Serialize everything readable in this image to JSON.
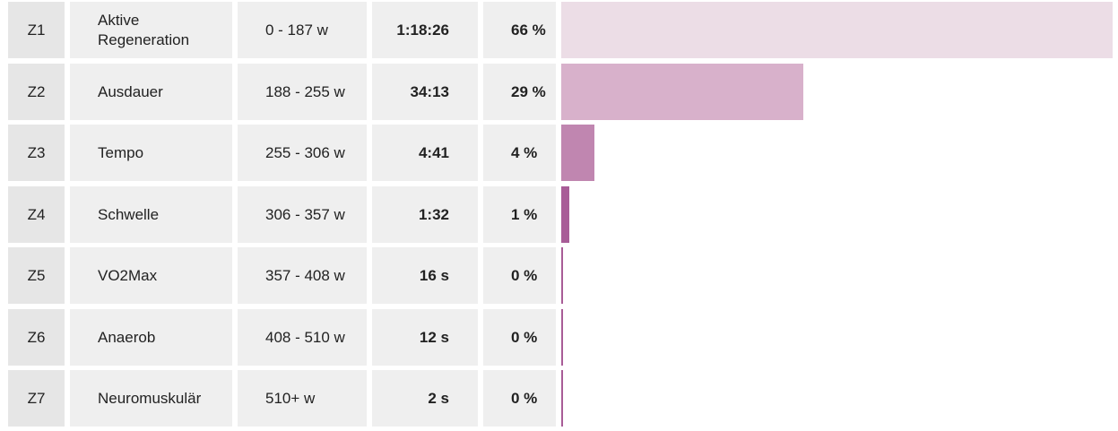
{
  "zones": [
    {
      "zone": "Z1",
      "name": "Aktive Regeneration",
      "range": "0 - 187 w",
      "time": "1:18:26",
      "percent_label": "66 %",
      "percent": 66,
      "bar_color": "#ecdde6"
    },
    {
      "zone": "Z2",
      "name": "Ausdauer",
      "range": "188 - 255 w",
      "time": "34:13",
      "percent_label": "29 %",
      "percent": 29,
      "bar_color": "#d8b1cb"
    },
    {
      "zone": "Z3",
      "name": "Tempo",
      "range": "255 - 306 w",
      "time": "4:41",
      "percent_label": "4 %",
      "percent": 4,
      "bar_color": "#c086b0"
    },
    {
      "zone": "Z4",
      "name": "Schwelle",
      "range": "306 - 357 w",
      "time": "1:32",
      "percent_label": "1 %",
      "percent": 1,
      "bar_color": "#a85c97"
    },
    {
      "zone": "Z5",
      "name": "VO2Max",
      "range": "357 - 408 w",
      "time": "16 s",
      "percent_label": "0 %",
      "percent": 0.2,
      "bar_color": "#a85c97"
    },
    {
      "zone": "Z6",
      "name": "Anaerob",
      "range": "408 - 510 w",
      "time": "12 s",
      "percent_label": "0 %",
      "percent": 0.1,
      "bar_color": "#a85c97"
    },
    {
      "zone": "Z7",
      "name": "Neuromuskulär",
      "range": "510+ w",
      "time": "2 s",
      "percent_label": "0 %",
      "percent": 0.05,
      "bar_color": "#a85c97"
    }
  ]
}
